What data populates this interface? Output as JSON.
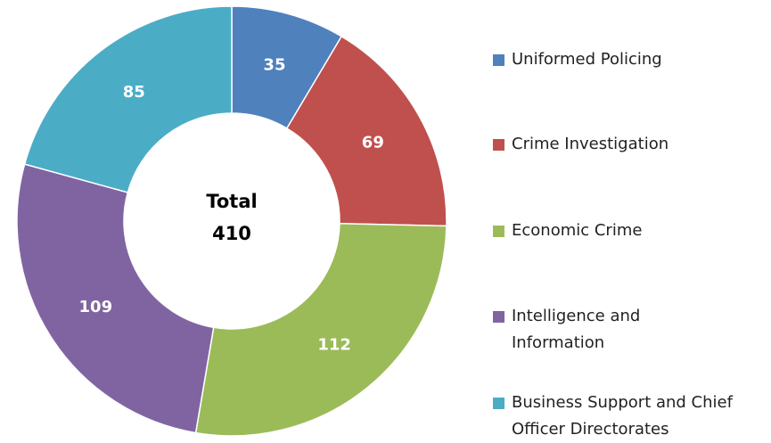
{
  "chart_data": {
    "type": "donut",
    "categories": [
      "Uniformed Policing",
      "Crime Investigation",
      "Economic Crime",
      "Intelligence and Information",
      "Business Support and Chief Officer Directorates"
    ],
    "values": [
      35,
      69,
      112,
      109,
      85
    ],
    "colors": [
      "#4f81bd",
      "#c0504d",
      "#9bbb59",
      "#8064a2",
      "#4bacc6"
    ],
    "total": {
      "label": "Total",
      "value": 410
    },
    "legend": "right"
  }
}
